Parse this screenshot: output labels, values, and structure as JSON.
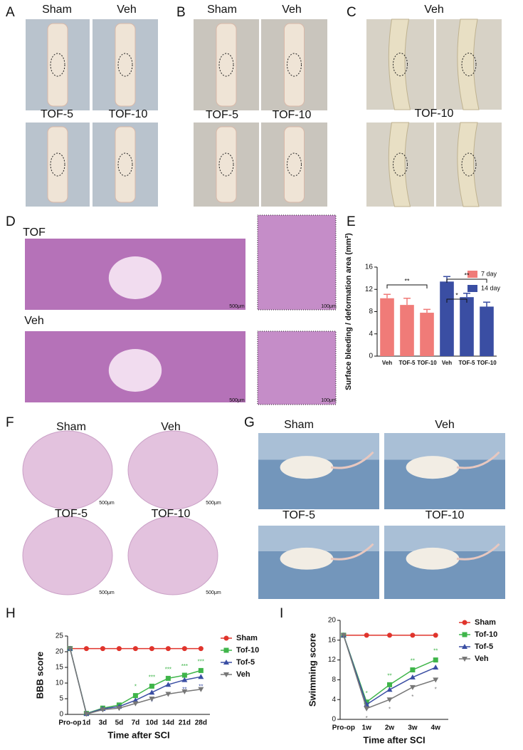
{
  "panels": {
    "letters": [
      "A",
      "B",
      "C",
      "D",
      "E",
      "F",
      "G",
      "H",
      "I"
    ],
    "A": {
      "labels": [
        "Sham",
        "Veh",
        "TOF-5",
        "TOF-10"
      ]
    },
    "B": {
      "labels": [
        "Sham",
        "Veh",
        "TOF-5",
        "TOF-10"
      ]
    },
    "C": {
      "labels": [
        "Veh",
        "TOF-10"
      ]
    },
    "D": {
      "labels": [
        "TOF",
        "Veh"
      ],
      "scale": [
        "500μm",
        "100μm"
      ]
    },
    "F": {
      "labels": [
        "Sham",
        "Veh",
        "TOF-5",
        "TOF-10"
      ],
      "scale": "500μm"
    },
    "G": {
      "labels": [
        "Sham",
        "Veh",
        "TOF-5",
        "TOF-10"
      ]
    }
  },
  "chart_data": [
    {
      "type": "bar",
      "y_label": "Surface bleeding / deformation area (mm²)",
      "categories": [
        "Veh",
        "TOF-5",
        "TOF-10"
      ],
      "series": [
        {
          "name": "7 day",
          "color": "#f07b78",
          "values": [
            10.4,
            9.2,
            7.8
          ],
          "errors": [
            0.7,
            1.2,
            0.6
          ]
        },
        {
          "name": "14 day",
          "color": "#3a4ea3",
          "values": [
            13.4,
            10.6,
            8.9
          ],
          "errors": [
            0.9,
            0.7,
            0.8
          ]
        }
      ],
      "annotations": [
        "**",
        "*",
        "**"
      ],
      "ylim": [
        0,
        16
      ],
      "yticks": [
        0,
        4,
        8,
        12,
        16
      ]
    },
    {
      "type": "line",
      "y_label": "BBB score",
      "x_label": "Time after SCI",
      "categories": [
        "Pro-op",
        "1d",
        "3d",
        "5d",
        "7d",
        "10d",
        "14d",
        "21d",
        "28d"
      ],
      "series": [
        {
          "name": "Sham",
          "color": "#e0342c",
          "marker": "circle",
          "values": [
            21,
            21,
            21,
            21,
            21,
            21,
            21,
            21,
            21
          ]
        },
        {
          "name": "Tof-10",
          "color": "#3fb54a",
          "marker": "square",
          "values": [
            21,
            0.3,
            2,
            3,
            6,
            9,
            11.5,
            12.5,
            14
          ],
          "significance": [
            null,
            null,
            null,
            null,
            "*",
            "***",
            "***",
            "***",
            "***"
          ]
        },
        {
          "name": "Tof-5",
          "color": "#3a4ea3",
          "marker": "triangle",
          "values": [
            21,
            0.2,
            1.8,
            2.5,
            4.5,
            7,
            9.5,
            11,
            12
          ],
          "significance": [
            null,
            null,
            null,
            null,
            null,
            "*",
            "**",
            "**",
            "**"
          ]
        },
        {
          "name": "Veh",
          "color": "#777777",
          "marker": "triangle-down",
          "values": [
            21,
            0.1,
            1.5,
            2,
            3.5,
            5,
            6.5,
            7.3,
            8
          ]
        }
      ],
      "ylim": [
        0,
        25
      ],
      "yticks": [
        0,
        5,
        10,
        15,
        20,
        25
      ]
    },
    {
      "type": "line",
      "y_label": "Swimming score",
      "x_label": "Time after SCI",
      "categories": [
        "Pro-op",
        "1w",
        "2w",
        "3w",
        "4w"
      ],
      "series": [
        {
          "name": "Sham",
          "color": "#e0342c",
          "marker": "circle",
          "values": [
            17,
            17,
            17,
            17,
            17
          ]
        },
        {
          "name": "Tof-10",
          "color": "#3fb54a",
          "marker": "square",
          "values": [
            17,
            3.5,
            7,
            10,
            12
          ],
          "significance": [
            null,
            "*",
            "**",
            "**",
            "**"
          ]
        },
        {
          "name": "Tof-5",
          "color": "#3a4ea3",
          "marker": "triangle",
          "values": [
            17,
            3,
            6,
            8.5,
            10.5
          ]
        },
        {
          "name": "Veh",
          "color": "#777777",
          "marker": "triangle-down",
          "values": [
            17,
            2.2,
            4,
            6.5,
            8
          ],
          "significance": [
            null,
            "*",
            "*",
            "*",
            "*"
          ]
        }
      ],
      "ylim": [
        0,
        20
      ],
      "yticks": [
        0,
        4,
        8,
        12,
        16,
        20
      ]
    }
  ]
}
